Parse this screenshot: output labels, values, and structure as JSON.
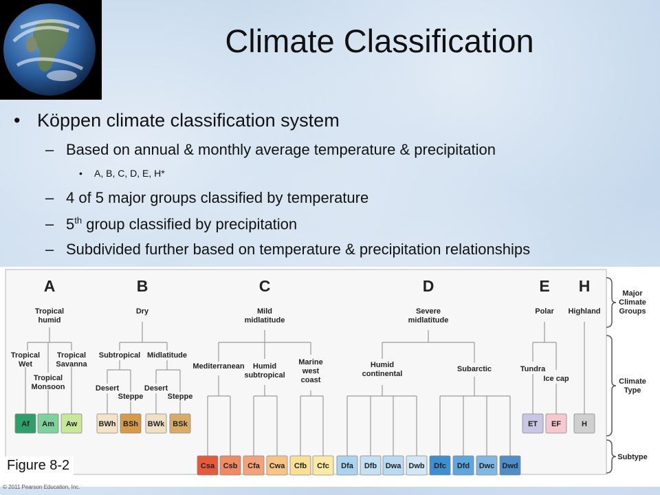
{
  "slide": {
    "title": "Climate Classification",
    "bullet1": "Köppen climate classification system",
    "sub1": "Based on annual & monthly average temperature & precipitation",
    "subsub1": "A, B, C, D, E, H*",
    "sub2": "4 of 5 major groups classified by temperature",
    "sub3_pre": "5",
    "sub3_sup": "th",
    "sub3_post": " group classified by precipitation",
    "sub4": "Subdivided further based on temperature & precipitation relationships",
    "bullet_char": "•",
    "dash_char": "–"
  },
  "figure": {
    "label": "Figure 8-2",
    "copyright": "© 2011 Pearson Education, Inc.",
    "groups": [
      "A",
      "B",
      "C",
      "D",
      "E",
      "H"
    ],
    "group_names": {
      "A": [
        "Tropical",
        "humid"
      ],
      "B": [
        "Dry"
      ],
      "C": [
        "Mild",
        "midlatitude"
      ],
      "D": [
        "Severe",
        "midlatitude"
      ],
      "E": [
        "Polar"
      ],
      "H": [
        "Highland"
      ]
    },
    "types": {
      "tropical_wet": [
        "Tropical",
        "Wet"
      ],
      "tropical_savanna": [
        "Tropical",
        "Savanna"
      ],
      "tropical_monsoon": [
        "Tropical",
        "Monsoon"
      ],
      "subtropical": [
        "Subtropical"
      ],
      "midlatitude": [
        "Midlatitude"
      ],
      "desert1": [
        "Desert"
      ],
      "steppe1": [
        "Steppe"
      ],
      "desert2": [
        "Desert"
      ],
      "steppe2": [
        "Steppe"
      ],
      "mediterranean": [
        "Mediterranean"
      ],
      "humid_subtropical": [
        "Humid",
        "subtropical"
      ],
      "marine": [
        "Marine",
        "west",
        "coast"
      ],
      "humid_continental": [
        "Humid",
        "continental"
      ],
      "subarctic": [
        "Subarctic"
      ],
      "tundra": [
        "Tundra"
      ],
      "ice_cap": [
        "Ice cap"
      ]
    },
    "side_labels": {
      "major": [
        "Major",
        "Climate",
        "Groups"
      ],
      "type": [
        "Climate",
        "Type"
      ],
      "subtype": [
        "Subtype"
      ]
    },
    "boxes_row1": [
      {
        "code": "Af",
        "color": "#2e9e6a"
      },
      {
        "code": "Am",
        "color": "#7ed19a"
      },
      {
        "code": "Aw",
        "color": "#c8e79a"
      },
      {
        "code": "BWh",
        "color": "#f3e3c8"
      },
      {
        "code": "BSh",
        "color": "#d59a4a"
      },
      {
        "code": "BWk",
        "color": "#efe1c4"
      },
      {
        "code": "BSk",
        "color": "#d8ac68"
      },
      {
        "code": "ET",
        "color": "#c9c6e4"
      },
      {
        "code": "EF",
        "color": "#f5c9cf"
      },
      {
        "code": "H",
        "color": "#cfcfcf"
      }
    ],
    "boxes_row2": [
      {
        "code": "Csa",
        "color": "#e65a3a"
      },
      {
        "code": "Csb",
        "color": "#ef8a64"
      },
      {
        "code": "Cfa",
        "color": "#f4a27a"
      },
      {
        "code": "Cwa",
        "color": "#f8c484"
      },
      {
        "code": "Cfb",
        "color": "#fbdf94"
      },
      {
        "code": "Cfc",
        "color": "#fbe9a6"
      },
      {
        "code": "Dfa",
        "color": "#a9d3ef"
      },
      {
        "code": "Dfb",
        "color": "#c4e0f3"
      },
      {
        "code": "Dwa",
        "color": "#b9dbf2"
      },
      {
        "code": "Dwb",
        "color": "#d3e8f6"
      },
      {
        "code": "Dfc",
        "color": "#3d8fd1"
      },
      {
        "code": "Dfd",
        "color": "#5ea6dc"
      },
      {
        "code": "Dwc",
        "color": "#7fb9e3"
      },
      {
        "code": "Dwd",
        "color": "#4f8fc9"
      }
    ]
  }
}
